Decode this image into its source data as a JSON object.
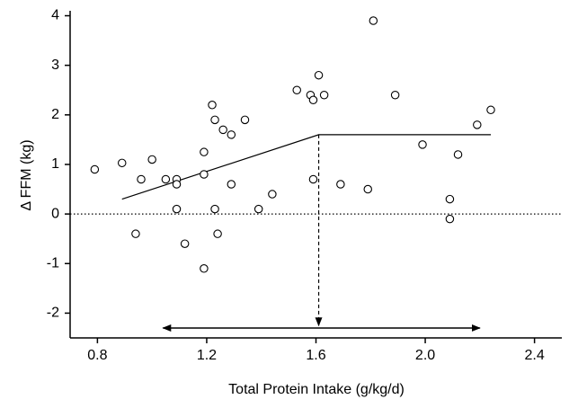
{
  "chart_data": {
    "type": "scatter",
    "x_label": "Total Protein Intake (g/kg/d)",
    "y_label": "Δ FFM (kg)",
    "xlim": [
      0.7,
      2.5
    ],
    "ylim": [
      -2.5,
      4.1
    ],
    "xticks": [
      0.8,
      1.2,
      1.6,
      {
        "value": 2,
        "label": "2.0"
      },
      2.4
    ],
    "yticks": [
      -2,
      -1,
      0,
      1,
      2,
      3,
      4
    ],
    "color": "#000000",
    "x": [
      0.79,
      0.89,
      0.96,
      1.0,
      0.94,
      1.05,
      1.09,
      1.09,
      1.09,
      1.12,
      1.19,
      1.19,
      1.19,
      1.22,
      1.23,
      1.23,
      1.24,
      1.26,
      1.29,
      1.29,
      1.34,
      1.39,
      1.44,
      1.53,
      1.58,
      1.59,
      1.61,
      1.63,
      1.59,
      1.69,
      1.79,
      1.81,
      1.89,
      1.99,
      2.09,
      2.09,
      2.12,
      2.19,
      2.24
    ],
    "values": [
      0.9,
      1.03,
      0.7,
      1.1,
      -0.4,
      0.7,
      0.7,
      0.6,
      0.1,
      -0.6,
      1.25,
      0.8,
      -1.1,
      2.2,
      1.9,
      0.1,
      -0.4,
      1.7,
      1.6,
      0.6,
      1.9,
      0.1,
      0.4,
      2.5,
      2.4,
      2.3,
      2.8,
      2.4,
      0.7,
      0.6,
      0.5,
      3.9,
      2.4,
      1.4,
      0.3,
      -0.1,
      1.2,
      1.8,
      2.1
    ],
    "fit_line": {
      "x": [
        0.89,
        1.61,
        2.24
      ],
      "y": [
        0.3,
        1.6,
        1.6
      ]
    },
    "reference_y": 0,
    "breakpoint_arrow": {
      "x": 1.61,
      "y": [
        1.6,
        -2.25
      ]
    },
    "range_arrow": {
      "x": [
        1.04,
        2.2
      ],
      "y": -2.3
    }
  }
}
